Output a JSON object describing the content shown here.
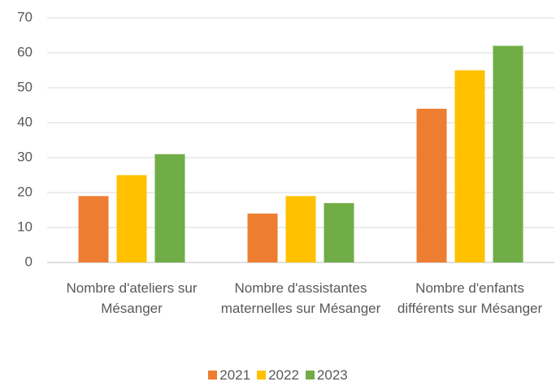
{
  "chart_data": {
    "type": "bar",
    "categories": [
      "Nombre d'ateliers sur Mésanger",
      "Nombre d'assistantes maternelles sur Mésanger",
      "Nombre d'enfants différents sur Mésanger"
    ],
    "series": [
      {
        "name": "2021",
        "color": "#ed7d31",
        "values": [
          19,
          14,
          44
        ]
      },
      {
        "name": "2022",
        "color": "#ffc000",
        "values": [
          25,
          19,
          55
        ]
      },
      {
        "name": "2023",
        "color": "#70ad47",
        "values": [
          31,
          17,
          62
        ]
      }
    ],
    "ylim": [
      0,
      70
    ],
    "yticks": [
      0,
      10,
      20,
      30,
      40,
      50,
      60,
      70
    ],
    "grid": true,
    "legend": "bottom"
  }
}
